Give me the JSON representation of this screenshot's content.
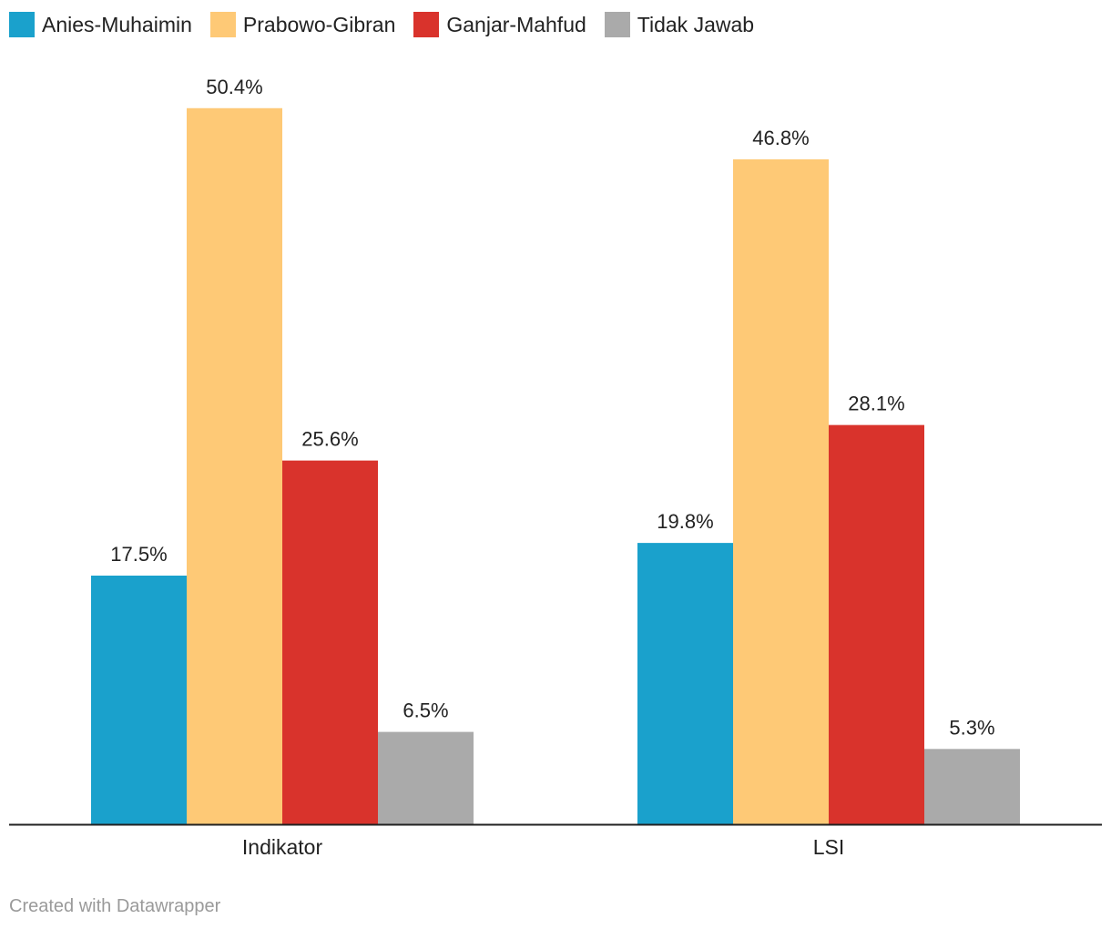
{
  "chart_data": {
    "type": "bar",
    "categories": [
      "Indikator",
      "LSI"
    ],
    "series": [
      {
        "name": "Anies-Muhaimin",
        "color": "#1aa1cc",
        "values": [
          17.5,
          19.8
        ],
        "labels": [
          "17.5%",
          "19.8%"
        ]
      },
      {
        "name": "Prabowo-Gibran",
        "color": "#fec976",
        "values": [
          50.4,
          46.8
        ],
        "labels": [
          "50.4%",
          "46.8%"
        ]
      },
      {
        "name": "Ganjar-Mahfud",
        "color": "#d9332c",
        "values": [
          25.6,
          28.1
        ],
        "labels": [
          "25.6%",
          "28.1%"
        ]
      },
      {
        "name": "Tidak Jawab",
        "color": "#aaaaaa",
        "values": [
          6.5,
          5.3
        ],
        "labels": [
          "6.5%",
          "5.3%"
        ]
      }
    ],
    "title": "",
    "xlabel": "",
    "ylabel": "",
    "ylim": [
      0,
      55
    ],
    "grid": false,
    "legend": "top-left"
  },
  "footer": {
    "credit": "Created with Datawrapper"
  }
}
